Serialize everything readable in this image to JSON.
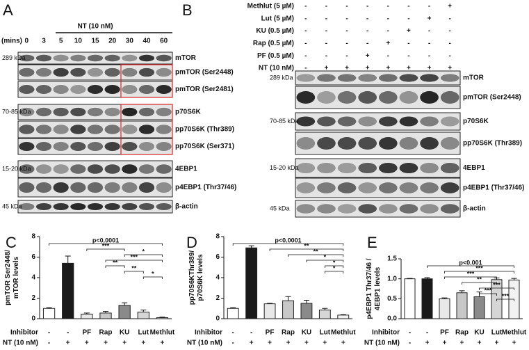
{
  "figure": {
    "A": {
      "label": "A",
      "treatment": "NT (10 nM)",
      "time_unit": "(mins)",
      "times": [
        "0",
        "3",
        "5",
        "10",
        "15",
        "20",
        "30",
        "40",
        "60"
      ],
      "rows": [
        {
          "name": "mTOR",
          "size": "289 kDa"
        },
        {
          "name": "pmTOR (Ser2448)"
        },
        {
          "name": "pmTOR (Ser2481)"
        },
        {
          "name": "p70S6K",
          "size": "70-85 kDa"
        },
        {
          "name": "pp70S6K (Thr389)"
        },
        {
          "name": "pp70S6K (Ser371)"
        },
        {
          "name": "4EBP1",
          "size": "15-20 kDa"
        },
        {
          "name": "p4EBP1 (Thr37/46)"
        },
        {
          "name": "β-actin",
          "size": "45 kDa"
        }
      ]
    },
    "B": {
      "label": "B",
      "treatments": [
        {
          "name": "Methlut (5 µM)",
          "signs": [
            "-",
            "-",
            "-",
            "-",
            "-",
            "-",
            "-",
            "+"
          ]
        },
        {
          "name": "Lut (5 µM)",
          "signs": [
            "-",
            "-",
            "-",
            "-",
            "-",
            "-",
            "+",
            "-"
          ]
        },
        {
          "name": "KU (0.5 µM)",
          "signs": [
            "-",
            "-",
            "-",
            "-",
            "-",
            "+",
            "-",
            "-"
          ]
        },
        {
          "name": "Rap (0.5 µM)",
          "signs": [
            "-",
            "-",
            "-",
            "-",
            "+",
            "-",
            "-",
            "-"
          ]
        },
        {
          "name": "PF (0.5 µM)",
          "signs": [
            "-",
            "-",
            "-",
            "+",
            "-",
            "-",
            "-",
            "-"
          ]
        },
        {
          "name": "NT (10 nM)",
          "signs": [
            "-",
            "+",
            "+",
            "+",
            "+",
            "+",
            "+",
            "+"
          ]
        }
      ],
      "rows": [
        {
          "name": "mTOR",
          "size": "289 kDa"
        },
        {
          "name": "pmTOR (Ser2448)"
        },
        {
          "name": "p70S6K",
          "size": "70-85 kDa"
        },
        {
          "name": "pp70S6K (Thr389)"
        },
        {
          "name": "4EBP1",
          "size": "15-20 kDa"
        },
        {
          "name": "p4EBP1 (Thr37/46)"
        },
        {
          "name": "β-actin",
          "size": "45 kDa"
        }
      ]
    }
  },
  "chart_data": [
    {
      "type": "bar",
      "panel": "C",
      "ylabel": [
        "pmTOR Ser2448/",
        "mTOR levels"
      ],
      "row_labels": [
        "Inhibitor",
        "NT (10 nM)"
      ],
      "categories": [
        "-",
        "-",
        "PF",
        "Rap",
        "KU",
        "Lut",
        "Methlut"
      ],
      "nt": [
        "-",
        "+",
        "+",
        "+",
        "+",
        "+",
        "+"
      ],
      "values": [
        1.0,
        5.4,
        0.45,
        0.55,
        1.3,
        0.65,
        0.1
      ],
      "errors": [
        0.08,
        0.7,
        0.1,
        0.15,
        0.25,
        0.2,
        0.05
      ],
      "colors": [
        "#ffffff",
        "#1a1a1a",
        "#e8e8e8",
        "#c8c8c8",
        "#8a8a8a",
        "#d6d6d6",
        "#f2f2f2"
      ],
      "ylim": [
        0,
        8
      ],
      "yticks": [
        0,
        2,
        4,
        6,
        8
      ],
      "comparisons": [
        {
          "from": 0,
          "to": 6,
          "label": "p<0.0001"
        },
        {
          "from": 2,
          "to": 4,
          "label": "***"
        },
        {
          "from": 4,
          "to": 6,
          "label": "*"
        },
        {
          "from": 3,
          "to": 6,
          "label": "***"
        },
        {
          "from": 3,
          "to": 4,
          "label": "**"
        },
        {
          "from": 4,
          "to": 5,
          "label": "**"
        },
        {
          "from": 5,
          "to": 6,
          "label": "*"
        }
      ]
    },
    {
      "type": "bar",
      "panel": "D",
      "ylabel": [
        "pp70S6KThr389/",
        "p70S6K levels"
      ],
      "row_labels": [
        "Inhibitor",
        "NT (10 nM)"
      ],
      "categories": [
        "-",
        "-",
        "PF",
        "Rap",
        "KU",
        "Lut",
        "Methlut"
      ],
      "nt": [
        "-",
        "+",
        "+",
        "+",
        "+",
        "+",
        "+"
      ],
      "values": [
        1.0,
        6.9,
        1.45,
        1.75,
        1.5,
        0.85,
        0.35
      ],
      "errors": [
        0.08,
        0.2,
        0.05,
        0.4,
        0.3,
        0.15,
        0.05
      ],
      "colors": [
        "#ffffff",
        "#1a1a1a",
        "#e8e8e8",
        "#c8c8c8",
        "#8a8a8a",
        "#d6d6d6",
        "#f2f2f2"
      ],
      "ylim": [
        0,
        8
      ],
      "yticks": [
        0,
        2,
        4,
        6,
        8
      ],
      "comparisons": [
        {
          "from": 0,
          "to": 6,
          "label": "p<0.0001"
        },
        {
          "from": 2,
          "to": 6,
          "label": "**"
        },
        {
          "from": 3,
          "to": 6,
          "label": "**"
        },
        {
          "from": 4,
          "to": 6,
          "label": "*"
        },
        {
          "from": 5,
          "to": 6,
          "label": "*"
        },
        {
          "from": 5,
          "to": 6,
          "label": "*"
        }
      ]
    },
    {
      "type": "bar",
      "panel": "E",
      "ylabel": [
        "p4EBP1 Thr37/46 /",
        "4EBP1 levels"
      ],
      "row_labels": [
        "Inhibitor",
        "NT (10 nM)"
      ],
      "categories": [
        "-",
        "-",
        "PF",
        "Rap",
        "KU",
        "Lut",
        "Methlut"
      ],
      "nt": [
        "-",
        "+",
        "+",
        "+",
        "+",
        "+",
        "+"
      ],
      "values": [
        1.0,
        1.0,
        0.5,
        0.65,
        0.55,
        0.98,
        0.97
      ],
      "errors": [
        0.01,
        0.03,
        0.02,
        0.05,
        0.12,
        0.04,
        0.04
      ],
      "colors": [
        "#ffffff",
        "#1a1a1a",
        "#e8e8e8",
        "#c8c8c8",
        "#8a8a8a",
        "#d6d6d6",
        "#f2f2f2"
      ],
      "ylim": [
        0,
        1.5
      ],
      "yticks": [
        {
          "value": 0,
          "label": "0.0"
        },
        {
          "value": 0.5,
          "label": "0.5"
        },
        {
          "value": 1,
          "label": "1.0"
        },
        {
          "value": 1.5,
          "label": "1.5"
        }
      ],
      "comparisons": [
        {
          "from": 1,
          "to": 6,
          "label": "p<0.001"
        },
        {
          "from": 2,
          "to": 6,
          "label": "***"
        },
        {
          "from": 2,
          "to": 5,
          "label": "***"
        },
        {
          "from": 3,
          "to": 5,
          "label": "**"
        },
        {
          "from": 4,
          "to": 6,
          "label": "***"
        },
        {
          "from": 4,
          "to": 5,
          "label": "***"
        },
        {
          "from": 5,
          "to": 6,
          "label": "***"
        }
      ]
    }
  ]
}
